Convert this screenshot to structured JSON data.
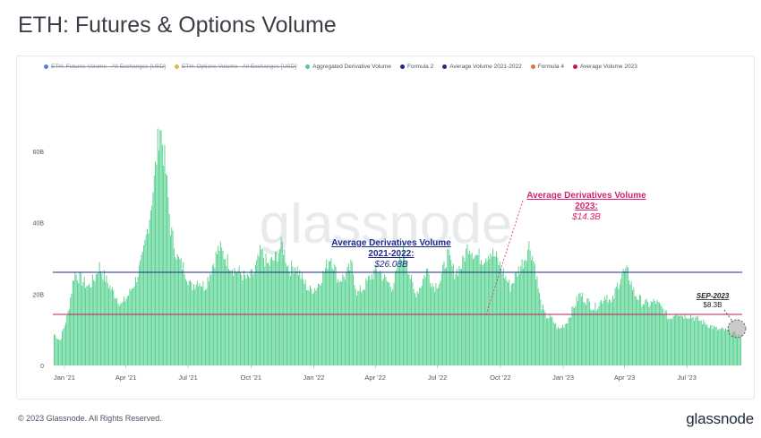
{
  "page": {
    "title": "ETH: Futures & Options Volume",
    "copyright": "© 2023 Glassnode. All Rights Reserved.",
    "brand": "glassnode",
    "watermark": "glassnode"
  },
  "legend": [
    {
      "label": "ETH: Futures Volume - All Exchanges [USD]",
      "color": "#5b7fd6",
      "disabled": true
    },
    {
      "label": "ETH: Options Volume - All Exchanges [USD]",
      "color": "#e6b44c",
      "disabled": true
    },
    {
      "label": "Aggregated Derivative Volume",
      "color": "#4fd08a",
      "disabled": false
    },
    {
      "label": "Formula 2",
      "color": "#1f2a8f",
      "disabled": false
    },
    {
      "label": "Average Volume 2021-2022",
      "color": "#1e2a8a",
      "disabled": false
    },
    {
      "label": "Formula 4",
      "color": "#e0733a",
      "disabled": false
    },
    {
      "label": "Average Volume 2023",
      "color": "#c2185b",
      "disabled": false
    }
  ],
  "annotations": {
    "avg_2021_2022": {
      "line1": "Average Derivatives Volume",
      "line2": "2021-2022:",
      "value": "$26.08B",
      "color": "#1e2a8a"
    },
    "avg_2023": {
      "line1": "Average Derivatives Volume",
      "line2": "2023:",
      "value": "$14.3B",
      "color": "#d6246e"
    },
    "sep_2023": {
      "label": "SEP-2023",
      "value": "$8.3B",
      "color": "#222222"
    }
  },
  "chart_data": {
    "type": "bar",
    "unit": "USD (billions)",
    "y_ticks": [
      "0",
      "20B",
      "40B",
      "60B"
    ],
    "y_tick_values": [
      0,
      20,
      40,
      60
    ],
    "ylim": [
      0,
      80
    ],
    "x_ticks": [
      "Jan '21",
      "Apr '21",
      "Jul '21",
      "Oct '21",
      "Jan '22",
      "Apr '22",
      "Jul '22",
      "Oct '22",
      "Jan '23",
      "Apr '23",
      "Jul '23"
    ],
    "x_tick_values": [
      "2021-01-01",
      "2021-04-01",
      "2021-07-01",
      "2021-10-01",
      "2022-01-01",
      "2022-04-01",
      "2022-07-01",
      "2022-10-01",
      "2023-01-01",
      "2023-04-01",
      "2023-07-01"
    ],
    "xlim": [
      "2020-12-15",
      "2023-09-20"
    ],
    "series": [
      {
        "name": "Aggregated Derivative Volume",
        "color": "#4fd08a",
        "dates": [
          "2020-12-15",
          "2020-12-25",
          "2021-01-05",
          "2021-01-15",
          "2021-01-25",
          "2021-02-05",
          "2021-02-15",
          "2021-02-20",
          "2021-02-25",
          "2021-03-05",
          "2021-03-15",
          "2021-03-25",
          "2021-04-05",
          "2021-04-15",
          "2021-04-25",
          "2021-05-05",
          "2021-05-12",
          "2021-05-20",
          "2021-05-28",
          "2021-06-05",
          "2021-06-15",
          "2021-06-25",
          "2021-07-05",
          "2021-07-15",
          "2021-07-25",
          "2021-08-05",
          "2021-08-15",
          "2021-08-25",
          "2021-09-05",
          "2021-09-15",
          "2021-09-25",
          "2021-10-05",
          "2021-10-15",
          "2021-10-25",
          "2021-11-05",
          "2021-11-15",
          "2021-11-25",
          "2021-12-05",
          "2021-12-15",
          "2021-12-25",
          "2022-01-05",
          "2022-01-15",
          "2022-01-25",
          "2022-02-05",
          "2022-02-15",
          "2022-02-25",
          "2022-03-05",
          "2022-03-15",
          "2022-03-25",
          "2022-04-05",
          "2022-04-15",
          "2022-04-25",
          "2022-05-05",
          "2022-05-12",
          "2022-05-20",
          "2022-05-28",
          "2022-06-05",
          "2022-06-15",
          "2022-06-25",
          "2022-07-05",
          "2022-07-15",
          "2022-07-25",
          "2022-08-05",
          "2022-08-15",
          "2022-08-25",
          "2022-09-05",
          "2022-09-15",
          "2022-09-25",
          "2022-10-05",
          "2022-10-15",
          "2022-10-25",
          "2022-11-05",
          "2022-11-12",
          "2022-11-20",
          "2022-11-28",
          "2022-12-05",
          "2022-12-15",
          "2022-12-25",
          "2023-01-05",
          "2023-01-15",
          "2023-01-25",
          "2023-02-05",
          "2023-02-15",
          "2023-02-25",
          "2023-03-05",
          "2023-03-12",
          "2023-03-20",
          "2023-03-28",
          "2023-04-05",
          "2023-04-15",
          "2023-04-25",
          "2023-05-05",
          "2023-05-15",
          "2023-05-25",
          "2023-06-05",
          "2023-06-15",
          "2023-06-25",
          "2023-07-05",
          "2023-07-15",
          "2023-07-25",
          "2023-08-05",
          "2023-08-15",
          "2023-08-25",
          "2023-09-05",
          "2023-09-15"
        ],
        "values": [
          9,
          7,
          14,
          26,
          24,
          22,
          25,
          28,
          26,
          23,
          20,
          17,
          20,
          24,
          30,
          42,
          52,
          68,
          56,
          38,
          30,
          27,
          22,
          24,
          22,
          28,
          33,
          30,
          27,
          26,
          24,
          26,
          32,
          28,
          30,
          34,
          27,
          28,
          24,
          21,
          22,
          26,
          31,
          24,
          25,
          28,
          20,
          22,
          25,
          27,
          24,
          22,
          28,
          33,
          26,
          20,
          22,
          27,
          22,
          24,
          31,
          26,
          28,
          34,
          31,
          30,
          32,
          30,
          26,
          22,
          26,
          30,
          34,
          28,
          18,
          14,
          13,
          10,
          12,
          16,
          20,
          18,
          16,
          18,
          20,
          17,
          22,
          26,
          26,
          20,
          18,
          17,
          18,
          16,
          13,
          15,
          14,
          14,
          13,
          12,
          11,
          10,
          10,
          9,
          8.3
        ]
      }
    ],
    "reference_lines": [
      {
        "name": "Average Volume 2021-2022",
        "value": 26.08,
        "color": "#1e2a8a"
      },
      {
        "name": "Average Volume 2023",
        "value": 14.3,
        "color": "#c2185b"
      }
    ],
    "grid": false,
    "legend_position": "top-left"
  }
}
